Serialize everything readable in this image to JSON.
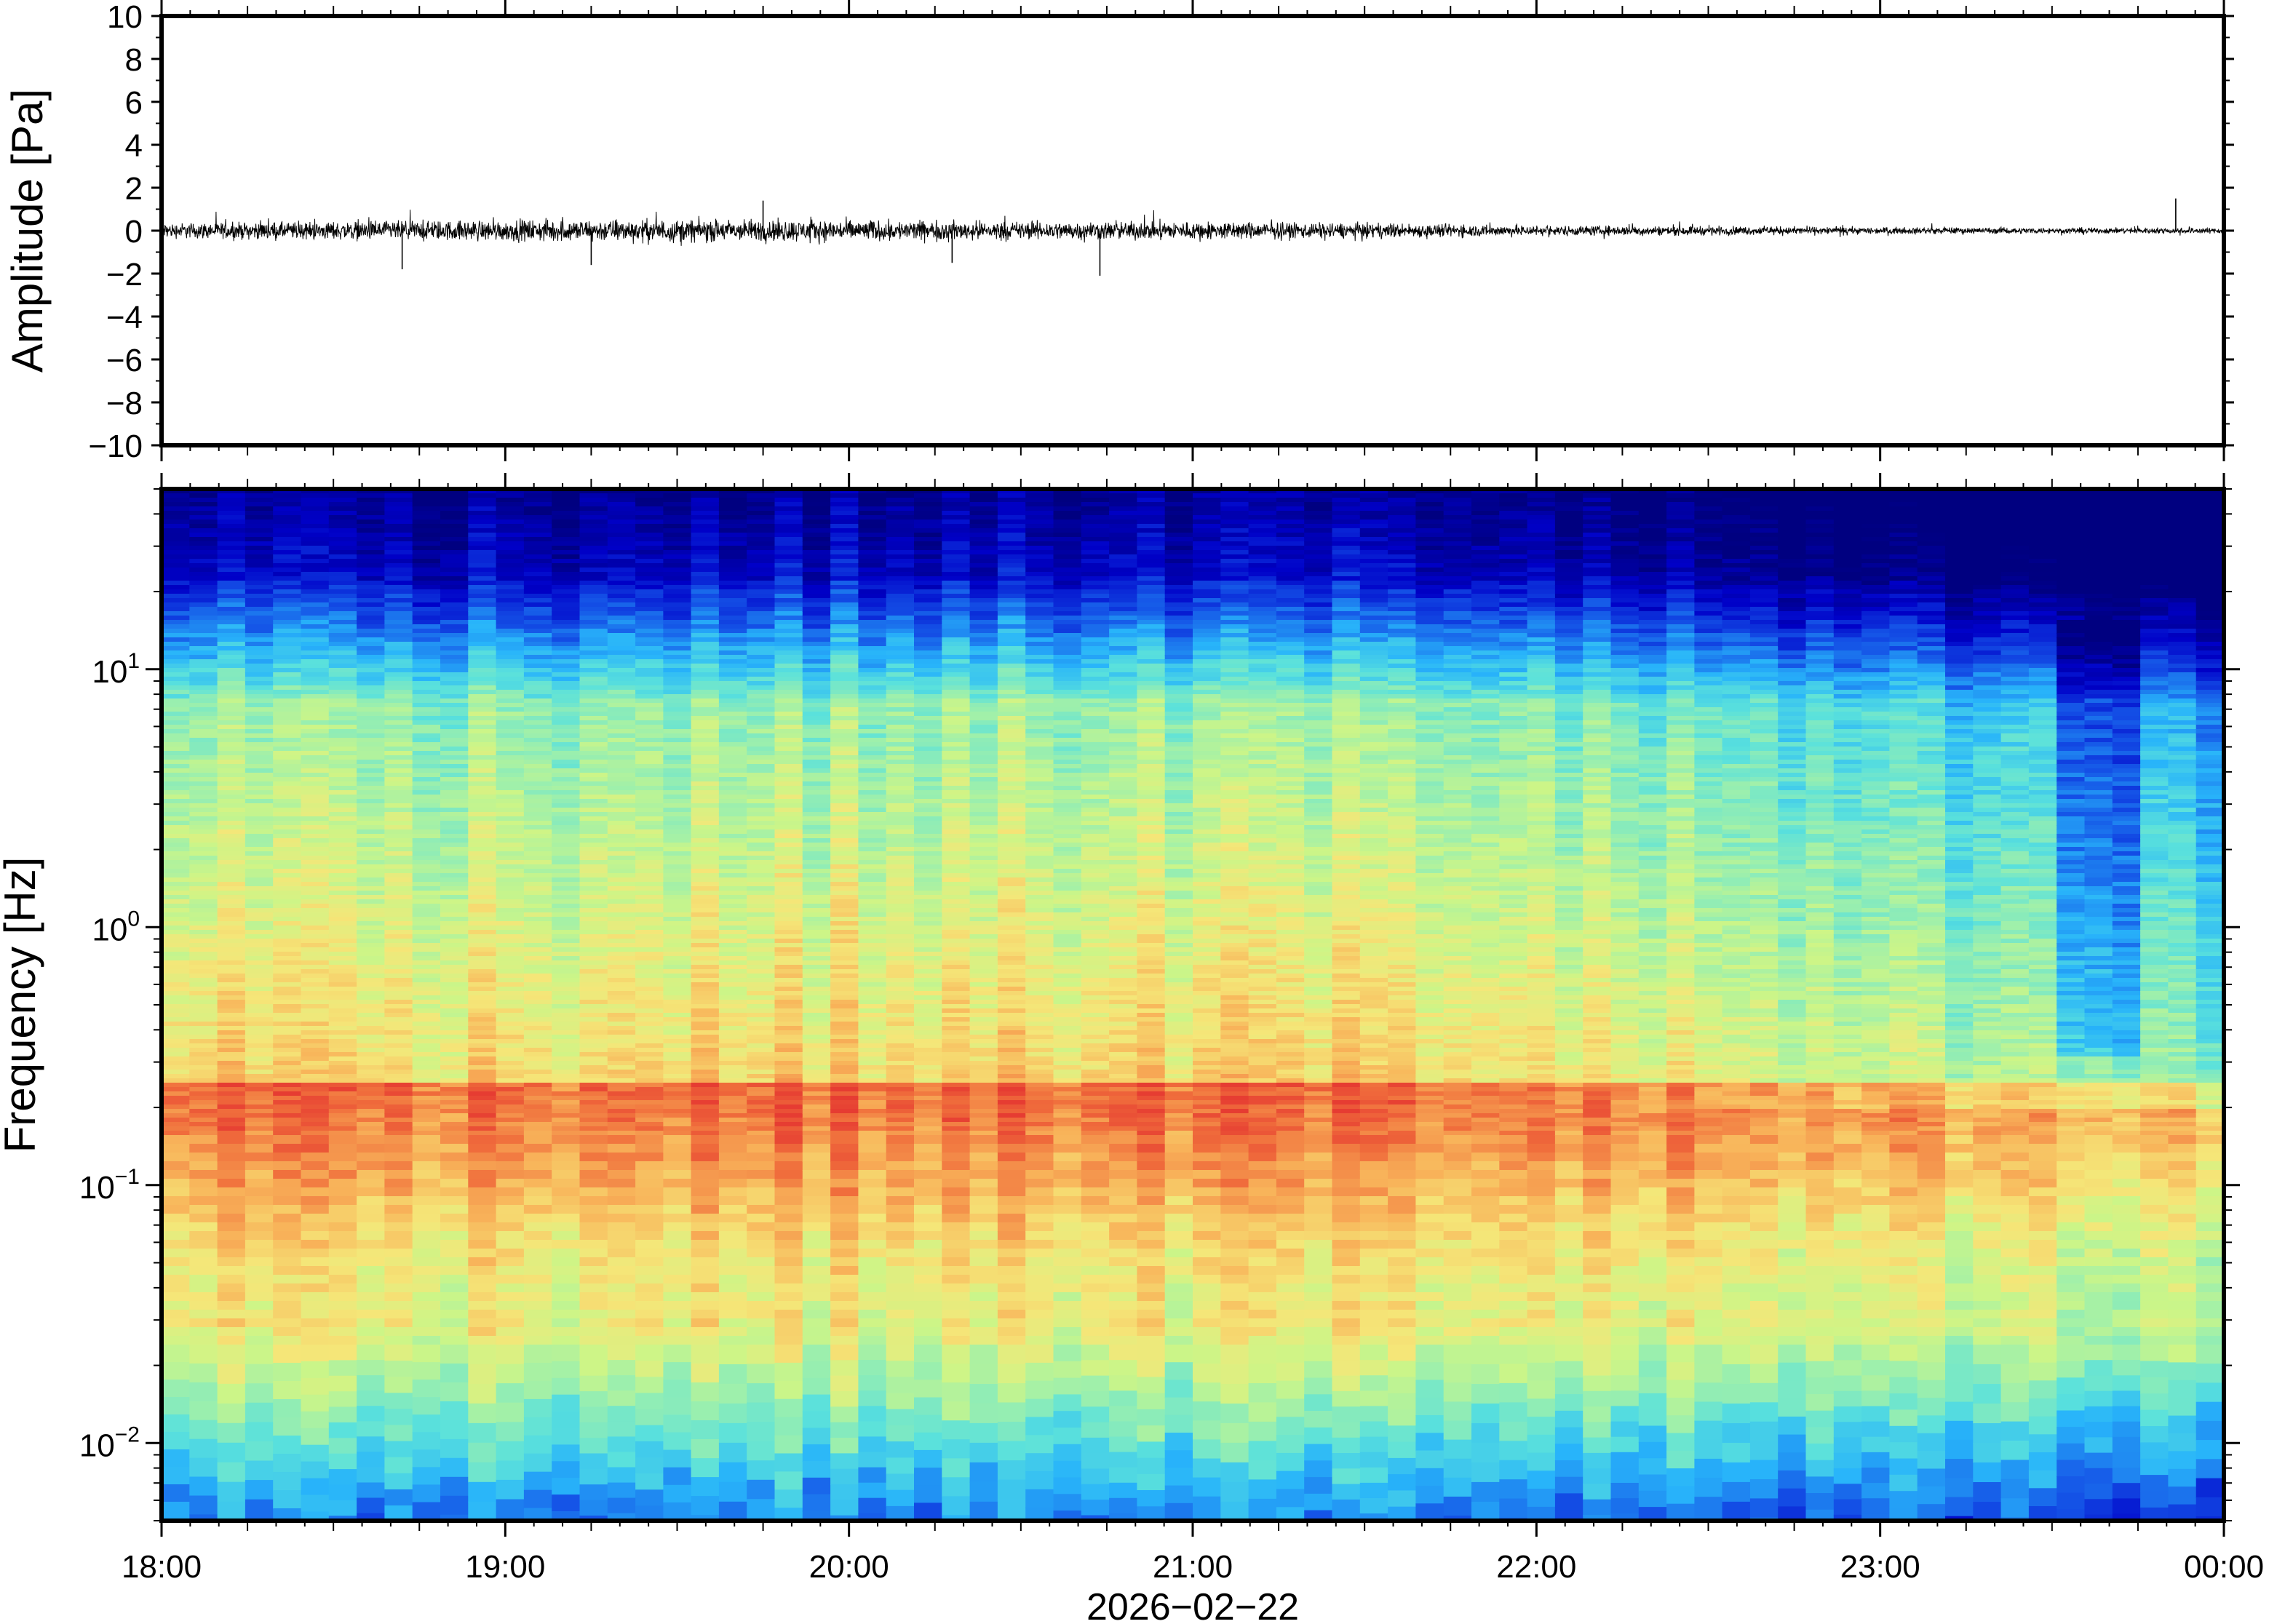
{
  "chart_data": [
    {
      "type": "line",
      "panel": "waveform",
      "ylabel": "Amplitude [Pa]",
      "ylim": [
        -10,
        10
      ],
      "yticks": [
        10,
        8,
        6,
        4,
        2,
        0,
        -2,
        -4,
        -6,
        -8,
        -10
      ],
      "ytick_labels": [
        "10",
        "8",
        "6",
        "4",
        "2",
        "0",
        "−2",
        "−4",
        "−6",
        "−8",
        "−10"
      ],
      "xlim": [
        "18:00",
        "00:00"
      ],
      "envelope_x_hours": [
        18.0,
        18.5,
        19.0,
        19.5,
        20.0,
        20.5,
        21.0,
        21.5,
        22.0,
        22.5,
        23.0,
        23.5,
        24.0
      ],
      "envelope_amplitude": [
        0.5,
        0.6,
        0.7,
        0.75,
        0.7,
        0.6,
        0.6,
        0.5,
        0.35,
        0.3,
        0.22,
        0.2,
        0.2
      ],
      "spikes": [
        {
          "x_hour": 18.7,
          "y": -1.8
        },
        {
          "x_hour": 19.25,
          "y": -1.6
        },
        {
          "x_hour": 19.75,
          "y": 1.4
        },
        {
          "x_hour": 20.3,
          "y": -1.5
        },
        {
          "x_hour": 20.73,
          "y": -2.1
        },
        {
          "x_hour": 23.86,
          "y": 1.5
        }
      ],
      "line_color": "#000000"
    },
    {
      "type": "heatmap",
      "panel": "spectrogram",
      "ylabel": "Frequency [Hz]",
      "yscale": "log",
      "ylim": [
        0.005,
        50
      ],
      "yticks": [
        0.01,
        0.1,
        1,
        10
      ],
      "ytick_labels": [
        {
          "base": "10",
          "exp": "−2"
        },
        {
          "base": "10",
          "exp": "−1"
        },
        {
          "base": "10",
          "exp": "0"
        },
        {
          "base": "10",
          "exp": "1"
        }
      ],
      "xlabel": "2026−02−22",
      "xticks": [
        "18:00",
        "19:00",
        "20:00",
        "21:00",
        "22:00",
        "23:00",
        "00:00"
      ],
      "colormap": "jet",
      "colors": {
        "low": "#000080",
        "mid": "#bff57a",
        "high": "#ee3c34"
      }
    }
  ]
}
